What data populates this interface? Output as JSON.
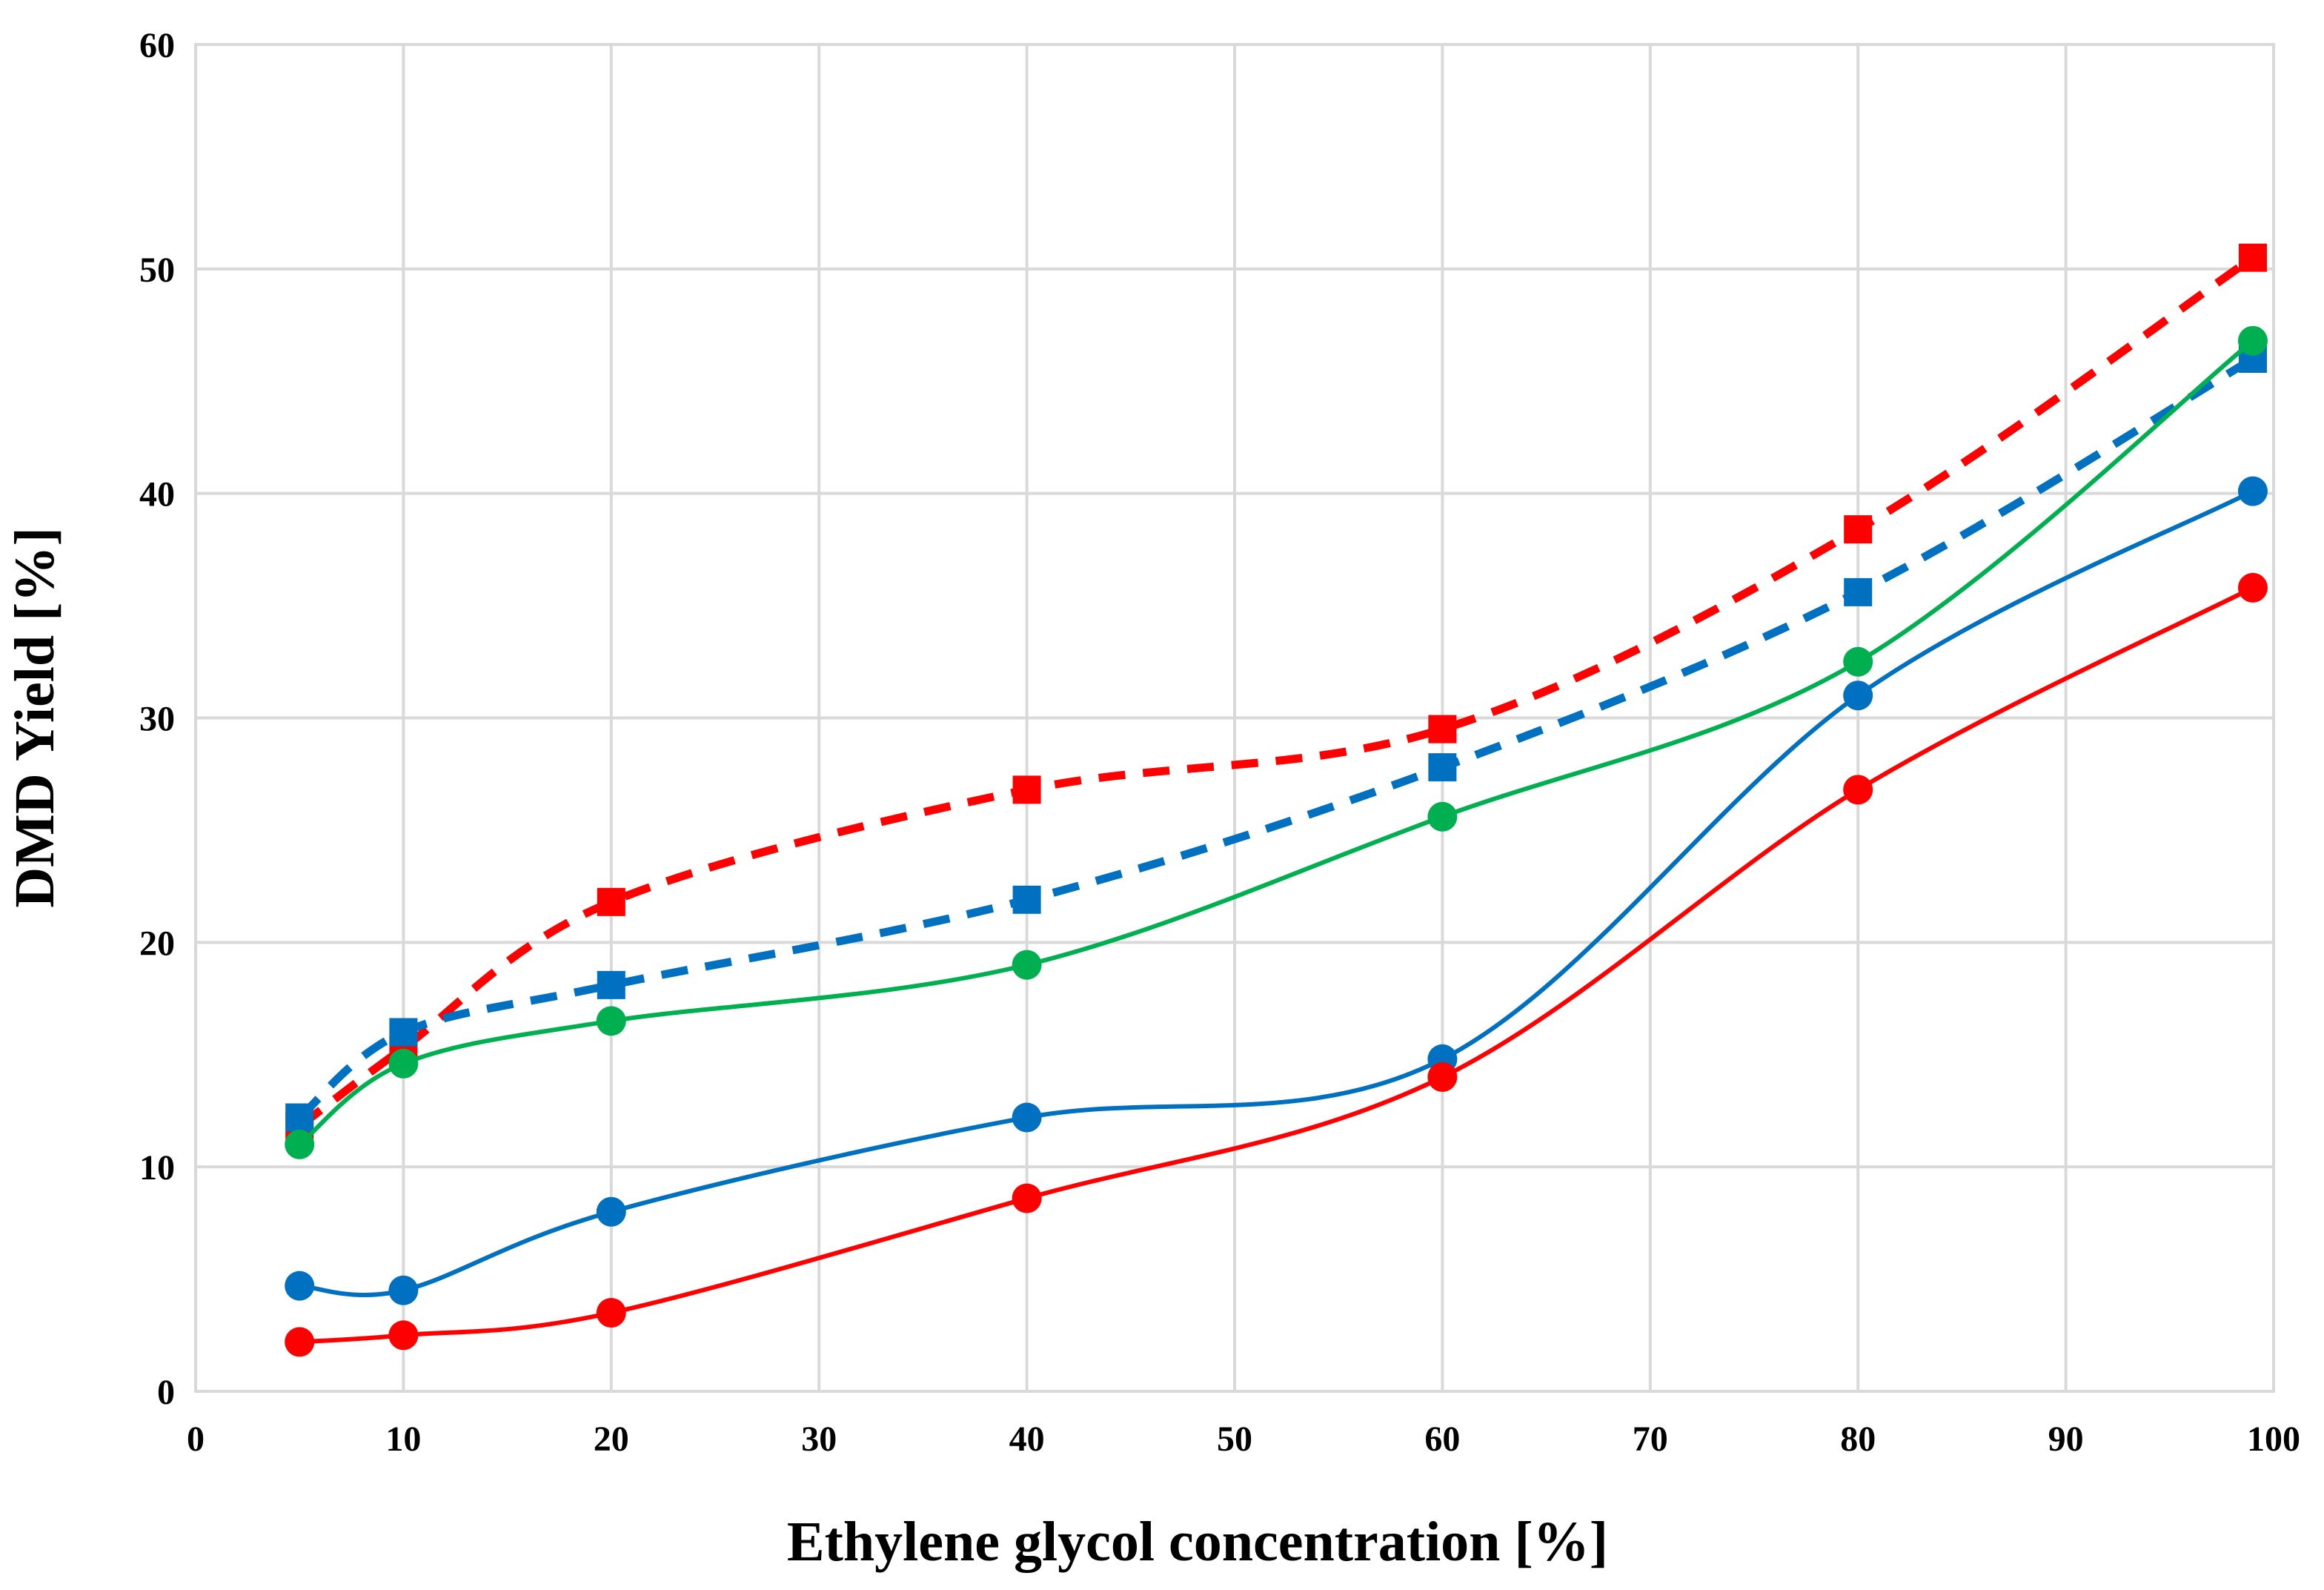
{
  "chart_data": {
    "type": "line",
    "title": "",
    "xlabel": "Ethylene glycol concentration [%]",
    "ylabel": "DMD Yield [%]",
    "xlim": [
      0,
      100
    ],
    "ylim": [
      0,
      60
    ],
    "xticks": [
      0,
      10,
      20,
      30,
      40,
      50,
      60,
      70,
      80,
      90,
      100
    ],
    "yticks": [
      0,
      10,
      20,
      30,
      40,
      50,
      60
    ],
    "grid": true,
    "legend": "none",
    "x": [
      5,
      10,
      20,
      40,
      60,
      80,
      99
    ],
    "series": [
      {
        "name": "red-dashed-squares",
        "color": "#ff0000",
        "dash": true,
        "marker": "square",
        "values": [
          11.8,
          15.3,
          21.8,
          26.8,
          29.5,
          38.4,
          50.5
        ]
      },
      {
        "name": "blue-dashed-squares",
        "color": "#0070c0",
        "dash": true,
        "marker": "square",
        "values": [
          12.2,
          16.0,
          18.1,
          21.9,
          27.8,
          35.6,
          46.0
        ]
      },
      {
        "name": "green-solid-circles",
        "color": "#00b050",
        "dash": false,
        "marker": "circle",
        "values": [
          11.0,
          14.6,
          16.5,
          19.0,
          25.6,
          32.5,
          46.8
        ]
      },
      {
        "name": "blue-solid-circles",
        "color": "#0070c0",
        "dash": false,
        "marker": "circle",
        "values": [
          4.7,
          4.5,
          8.0,
          12.2,
          14.8,
          31.0,
          40.1
        ]
      },
      {
        "name": "red-solid-circles",
        "color": "#ff0000",
        "dash": false,
        "marker": "circle",
        "values": [
          2.2,
          2.5,
          3.5,
          8.6,
          14.0,
          26.8,
          35.8
        ]
      }
    ]
  }
}
